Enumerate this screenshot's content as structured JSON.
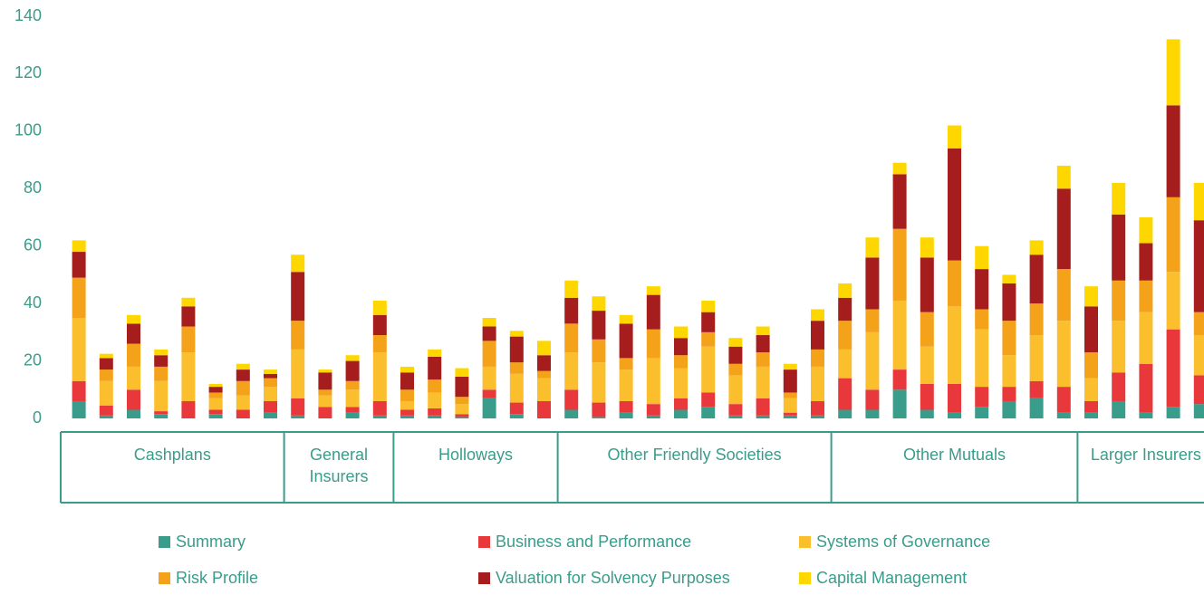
{
  "chart_data": {
    "type": "stacked_bar",
    "categories": [
      null,
      null,
      null,
      null,
      null,
      null,
      null,
      null,
      null,
      null,
      null,
      null,
      null,
      null,
      null,
      null,
      null,
      null,
      null,
      null,
      null,
      null,
      null,
      null,
      null,
      null,
      null,
      null,
      null,
      null,
      null,
      null,
      null,
      null,
      null,
      null,
      null,
      null,
      null,
      null,
      null,
      null
    ],
    "groups": [
      {
        "label": "Cashplans",
        "span": 8
      },
      {
        "label": "General Insurers",
        "span": 4
      },
      {
        "label": "Holloways",
        "span": 6
      },
      {
        "label": "Other Friendly Societies",
        "span": 10
      },
      {
        "label": "Other Mutuals",
        "span": 9
      },
      {
        "label": "Larger Insurers",
        "span": 5
      }
    ],
    "ylim": [
      0,
      140
    ],
    "yticks": [
      0,
      20,
      40,
      60,
      80,
      100,
      120,
      140
    ],
    "grid": false,
    "series": [
      {
        "name": "Summary",
        "color": "#3a9c8a",
        "values": [
          6,
          1,
          3,
          1.5,
          0,
          1.5,
          0,
          2,
          1,
          0,
          2,
          1,
          1,
          1,
          0.5,
          7,
          1.5,
          0,
          3,
          0.5,
          2,
          1,
          3,
          4,
          1,
          1,
          1,
          1,
          3,
          3,
          10,
          3,
          2,
          4,
          6,
          7,
          2,
          2,
          6,
          2,
          4,
          5
        ]
      },
      {
        "name": "Business and Performance",
        "color": "#e8383b",
        "values": [
          7,
          3.5,
          7,
          1,
          6,
          1.5,
          3,
          4,
          6,
          4,
          2,
          5,
          2,
          2.5,
          1,
          3,
          4,
          6,
          7,
          5,
          4,
          4,
          4,
          5,
          4,
          6,
          1,
          5,
          11,
          7,
          7,
          9,
          10,
          7,
          5,
          6,
          9,
          4,
          10,
          17,
          27,
          10
        ]
      },
      {
        "name": "Systems of Governance",
        "color": "#fbbf2d",
        "values": [
          22,
          8.5,
          8,
          10.5,
          17,
          4,
          5,
          5,
          17,
          4,
          6,
          17,
          3,
          5.5,
          3.5,
          8,
          10,
          8,
          13,
          14,
          11,
          16,
          10.5,
          16,
          10,
          11,
          5,
          12,
          10,
          20,
          24,
          13,
          27,
          20,
          11,
          16,
          23,
          8,
          18,
          18,
          20,
          14
        ]
      },
      {
        "name": "Risk Profile",
        "color": "#f4a21a",
        "values": [
          14,
          4,
          8,
          5,
          9,
          2,
          5,
          3,
          10,
          2,
          3,
          6,
          4,
          4.5,
          2.5,
          9,
          4,
          2.5,
          10,
          8,
          4,
          10,
          4.5,
          5,
          4,
          5,
          2,
          6,
          10,
          8,
          25,
          12,
          16,
          7,
          12,
          11,
          18,
          9,
          14,
          11,
          26,
          8
        ]
      },
      {
        "name": "Valuation for Solvency Purposes",
        "color": "#a51d1d",
        "values": [
          9,
          4,
          7,
          4,
          7,
          2,
          4,
          1.5,
          17,
          6,
          7,
          7,
          6,
          8,
          7,
          5,
          9,
          5.5,
          9,
          10,
          12,
          12,
          6,
          7,
          6,
          6,
          8,
          10,
          8,
          18,
          19,
          19,
          39,
          14,
          13,
          17,
          28,
          16,
          23,
          13,
          32,
          32
        ]
      },
      {
        "name": "Capital Management",
        "color": "#ffd700",
        "values": [
          4,
          1.5,
          3,
          2,
          3,
          1,
          2,
          1.5,
          6,
          1,
          2,
          5,
          2,
          2.5,
          3,
          3,
          2,
          5,
          6,
          5,
          3,
          3,
          4,
          4,
          3,
          3,
          2,
          4,
          5,
          7,
          4,
          7,
          8,
          8,
          3,
          5,
          8,
          7,
          11,
          9,
          23,
          13
        ]
      }
    ],
    "legend": "bottom"
  }
}
